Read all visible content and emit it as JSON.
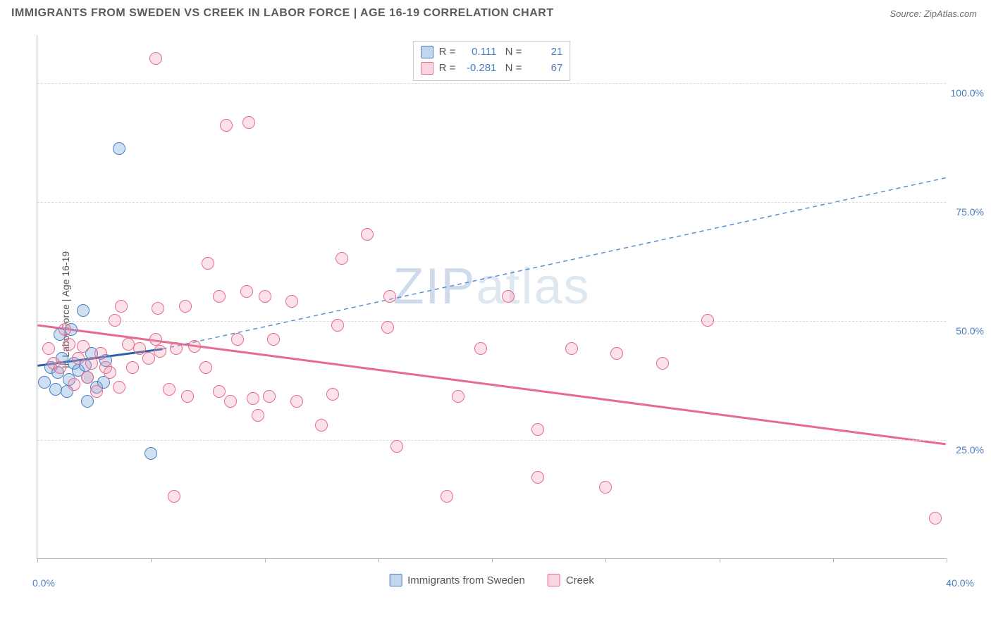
{
  "header": {
    "title": "IMMIGRANTS FROM SWEDEN VS CREEK IN LABOR FORCE | AGE 16-19 CORRELATION CHART",
    "source": "Source: ZipAtlas.com"
  },
  "chart": {
    "type": "scatter",
    "watermark": "ZIPatlas",
    "ylabel": "In Labor Force | Age 16-19",
    "xlim": [
      0,
      40
    ],
    "ylim": [
      0,
      110
    ],
    "xtick_positions": [
      0,
      5,
      10,
      15,
      20,
      25,
      30,
      35,
      40
    ],
    "xtick_labels": {
      "0": "0.0%",
      "40": "40.0%"
    },
    "ytick_positions": [
      25,
      50,
      75,
      100
    ],
    "ytick_labels": [
      "25.0%",
      "50.0%",
      "75.0%",
      "100.0%"
    ],
    "grid_color": "#dcdcdc",
    "axis_color": "#b8b8b8",
    "background_color": "#ffffff",
    "series": [
      {
        "name": "Immigrants from Sweden",
        "color_fill": "rgba(120,165,220,0.35)",
        "color_stroke": "#4a7ec2",
        "stats": {
          "R": "0.111",
          "N": "21"
        },
        "trend": {
          "solid": [
            [
              0,
              40.5
            ],
            [
              5.5,
              44
            ]
          ],
          "dashed": [
            [
              5.5,
              44
            ],
            [
              40,
              80
            ]
          ]
        },
        "points": [
          [
            0.3,
            37
          ],
          [
            0.6,
            40
          ],
          [
            0.8,
            35.5
          ],
          [
            0.9,
            39
          ],
          [
            1.0,
            47
          ],
          [
            1.1,
            42
          ],
          [
            1.3,
            35
          ],
          [
            1.4,
            37.5
          ],
          [
            1.5,
            48
          ],
          [
            1.6,
            41
          ],
          [
            1.8,
            39.5
          ],
          [
            2.0,
            52
          ],
          [
            2.1,
            40.5
          ],
          [
            2.2,
            38
          ],
          [
            2.4,
            43
          ],
          [
            2.6,
            36
          ],
          [
            2.2,
            33
          ],
          [
            2.9,
            37
          ],
          [
            3.0,
            41.5
          ],
          [
            3.6,
            86
          ],
          [
            5.0,
            22
          ]
        ]
      },
      {
        "name": "Creek",
        "color_fill": "rgba(240,150,175,0.28)",
        "color_stroke": "#e86a8f",
        "stats": {
          "R": "-0.281",
          "N": "67"
        },
        "trend": {
          "solid": [
            [
              0,
              49
            ],
            [
              40,
              24
            ]
          ],
          "dashed": null
        },
        "points": [
          [
            0.5,
            44
          ],
          [
            0.7,
            41
          ],
          [
            1.0,
            40
          ],
          [
            1.2,
            48
          ],
          [
            1.4,
            45
          ],
          [
            1.6,
            36.5
          ],
          [
            1.8,
            42
          ],
          [
            2.0,
            44.5
          ],
          [
            2.2,
            38
          ],
          [
            2.4,
            41
          ],
          [
            2.6,
            35
          ],
          [
            2.8,
            43
          ],
          [
            3.0,
            40
          ],
          [
            3.2,
            39
          ],
          [
            3.4,
            50
          ],
          [
            3.7,
            53
          ],
          [
            3.6,
            36
          ],
          [
            4.0,
            45
          ],
          [
            4.2,
            40
          ],
          [
            4.5,
            44
          ],
          [
            4.9,
            42
          ],
          [
            5.2,
            46
          ],
          [
            5.4,
            43.5
          ],
          [
            5.2,
            105
          ],
          [
            5.3,
            52.5
          ],
          [
            5.8,
            35.5
          ],
          [
            6.1,
            44
          ],
          [
            6.0,
            13
          ],
          [
            6.6,
            34
          ],
          [
            6.5,
            53
          ],
          [
            6.9,
            44.5
          ],
          [
            7.4,
            40
          ],
          [
            7.5,
            62
          ],
          [
            8.0,
            55
          ],
          [
            8.0,
            35
          ],
          [
            8.3,
            91
          ],
          [
            8.8,
            46
          ],
          [
            8.5,
            33
          ],
          [
            9.3,
            91.5
          ],
          [
            9.2,
            56
          ],
          [
            9.5,
            33.5
          ],
          [
            9.7,
            30
          ],
          [
            10.0,
            55
          ],
          [
            10.2,
            34
          ],
          [
            10.4,
            46
          ],
          [
            11.2,
            54
          ],
          [
            11.4,
            33
          ],
          [
            12.5,
            28
          ],
          [
            13.0,
            34.5
          ],
          [
            13.2,
            49
          ],
          [
            13.4,
            63
          ],
          [
            14.5,
            68
          ],
          [
            15.4,
            48.5
          ],
          [
            15.5,
            55
          ],
          [
            15.8,
            23.5
          ],
          [
            18.0,
            13
          ],
          [
            18.5,
            34
          ],
          [
            19.5,
            44
          ],
          [
            20.7,
            55
          ],
          [
            22.0,
            27
          ],
          [
            22.0,
            17
          ],
          [
            23.5,
            44
          ],
          [
            25.0,
            15
          ],
          [
            25.5,
            43
          ],
          [
            27.5,
            41
          ],
          [
            29.5,
            50
          ],
          [
            39.5,
            8.5
          ]
        ]
      }
    ],
    "legend": [
      {
        "swatch": "blue",
        "label": "Immigrants from Sweden"
      },
      {
        "swatch": "pink",
        "label": "Creek"
      }
    ]
  }
}
